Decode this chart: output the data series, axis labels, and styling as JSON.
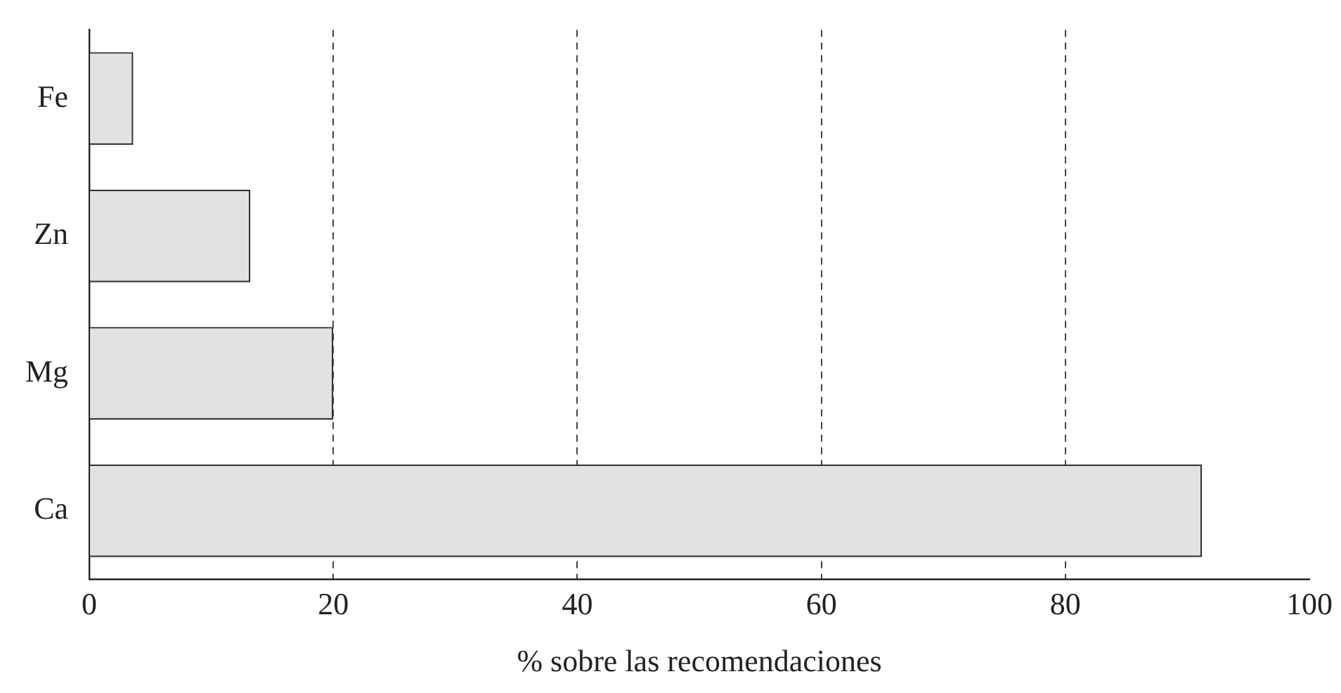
{
  "chart_data": {
    "type": "bar",
    "orientation": "horizontal",
    "categories": [
      "Fe",
      "Zn",
      "Mg",
      "Ca"
    ],
    "values": [
      3.6,
      13.2,
      20,
      91.2
    ],
    "color": "#e2e2e2",
    "xlabel": "% sobre las recomendaciones",
    "xlim": [
      0,
      100
    ],
    "xticks": [
      0,
      20,
      40,
      60,
      80,
      100
    ],
    "grid": "x",
    "legend": false
  }
}
